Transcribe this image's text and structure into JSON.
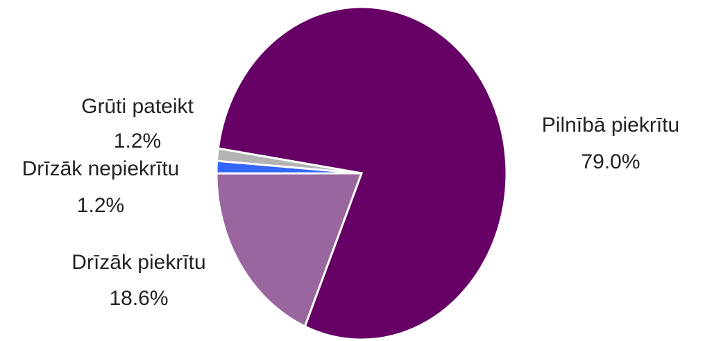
{
  "chart_data": {
    "type": "pie",
    "categories": [
      "Pilnībā piekrītu",
      "Drīzāk piekrītu",
      "Drīzāk nepiekrītu",
      "Grūti pateikt"
    ],
    "values": [
      79.0,
      18.6,
      1.2,
      1.2
    ],
    "value_labels": [
      "79.0%",
      "18.6%",
      "1.2%",
      "1.2%"
    ],
    "colors": [
      "#660066",
      "#9966a0",
      "#3366ff",
      "#b3b3b3"
    ]
  }
}
